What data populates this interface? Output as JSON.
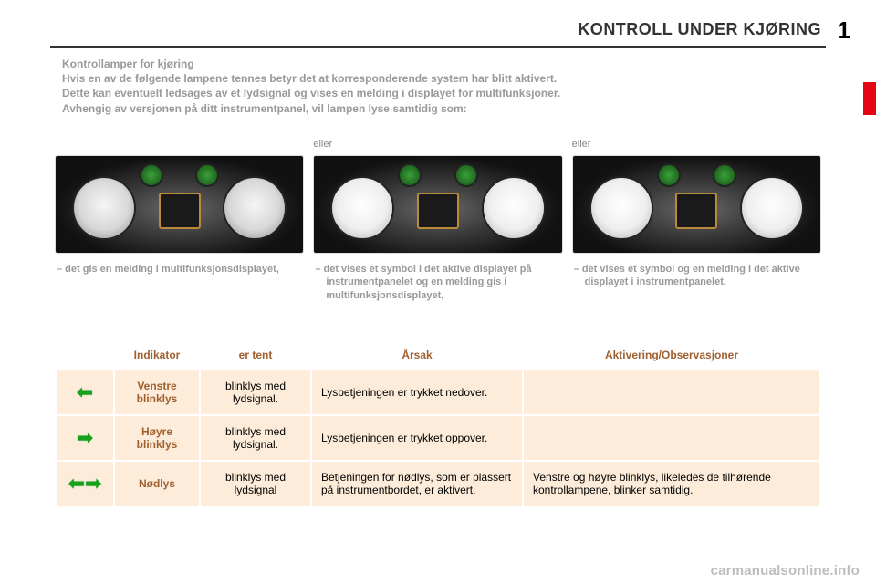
{
  "page": {
    "number": "1",
    "section_title": "KONTROLL UNDER KJØRING"
  },
  "intro": {
    "heading": "Kontrollamper for kjøring",
    "line1": "Hvis en av de følgende lampene tennes betyr det at korresponderende system har blitt aktivert.",
    "line2": "Dette kan eventuelt ledsages av et lydsignal og vises en melding i displayet for multifunksjoner.",
    "line3": "Avhengig av versjonen på ditt instrumentpanel, vil lampen lyse samtidig som:"
  },
  "gauges": {
    "eller": "eller",
    "captions": [
      "–  det gis en melding i multifunksjonsdisplayet,",
      "–  det vises et symbol i det aktive displayet på instrumentpanelet og en melding gis i multifunksjonsdisplayet,",
      "–  det vises et symbol og en melding i det aktive displayet i instrumentpanelet."
    ]
  },
  "table": {
    "headers": {
      "indikator": "Indikator",
      "tent": "er tent",
      "arsak": "Årsak",
      "aktivering": "Aktivering/Observasjoner"
    },
    "row_bg": "#fdecd9",
    "header_color": "#a06030",
    "rows": [
      {
        "icon": "left-arrow",
        "indikator": "Venstre blinklys",
        "tent": "blinklys med lydsignal.",
        "arsak": "Lysbetjeningen er trykket nedover.",
        "aktivering": ""
      },
      {
        "icon": "right-arrow",
        "indikator": "Høyre blinklys",
        "tent": "blinklys med lydsignal.",
        "arsak": "Lysbetjeningen er trykket oppover.",
        "aktivering": ""
      },
      {
        "icon": "hazard",
        "indikator": "Nødlys",
        "tent": "blinklys med lydsignal",
        "arsak": "Betjeningen for nødlys, som er plassert på instrumentbordet, er aktivert.",
        "aktivering": "Venstre og høyre blinklys, likeledes de tilhørende kontrollampene, blinker samtidig."
      }
    ]
  },
  "watermark": "carmanualsonline.info",
  "colors": {
    "arrow_green": "#18a018",
    "red_tab": "#e30613",
    "intro_text": "#999999"
  }
}
